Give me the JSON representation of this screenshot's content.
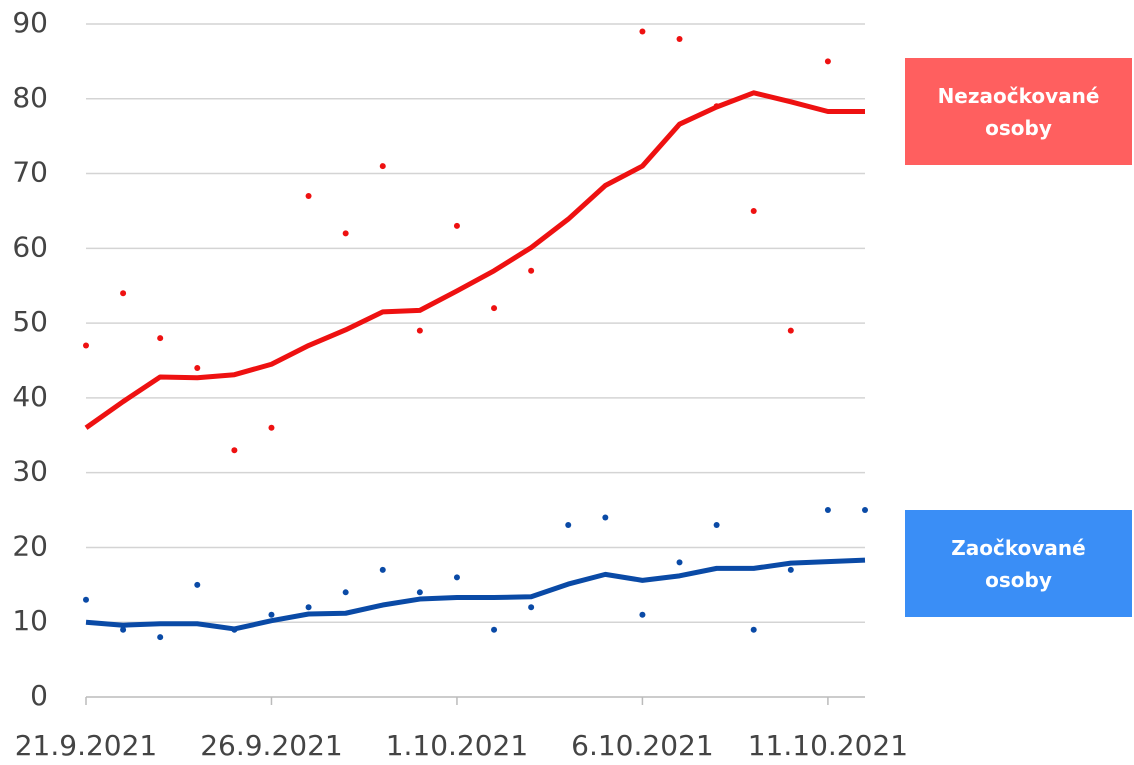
{
  "chart_data": {
    "type": "line",
    "categories": [
      "21.9.2021",
      null,
      null,
      null,
      null,
      "26.9.2021",
      null,
      null,
      null,
      null,
      "1.10.2021",
      null,
      null,
      null,
      null,
      "6.10.2021",
      null,
      null,
      null,
      null,
      "11.10.2021",
      null
    ],
    "ylim": [
      0,
      90
    ],
    "yticks": [
      0,
      10,
      20,
      30,
      40,
      50,
      60,
      70,
      80,
      90
    ],
    "grid": true,
    "series": [
      {
        "name": "Nezaočkované osoby",
        "color": "#ee1111",
        "legend_color": "#ff5f5f",
        "values": [
          36,
          39.5,
          42.8,
          42.7,
          43.1,
          44.5,
          47,
          49.1,
          51.5,
          51.7,
          54.3,
          57,
          60.1,
          63.9,
          68.4,
          71,
          76.6,
          78.9,
          80.8,
          79.6,
          78.3,
          78.3
        ],
        "daily": [
          47,
          54,
          48,
          44,
          33,
          36,
          67,
          62,
          71,
          49,
          63,
          52,
          57,
          null,
          null,
          89,
          88,
          79,
          65,
          49,
          85,
          null
        ]
      },
      {
        "name": "Zaočkované osoby",
        "color": "#0a4aa6",
        "legend_color": "#3a8ef6",
        "values": [
          10,
          9.6,
          9.8,
          9.8,
          9.1,
          10.2,
          11.1,
          11.2,
          12.3,
          13.1,
          13.3,
          13.3,
          13.4,
          15.1,
          16.4,
          15.6,
          16.2,
          17.2,
          17.2,
          17.9,
          18.1,
          18.3
        ],
        "daily": [
          13,
          9,
          8,
          15,
          9,
          11,
          12,
          14,
          17,
          14,
          16,
          9,
          12,
          23,
          24,
          11,
          18,
          23,
          9,
          17,
          25,
          25
        ]
      }
    ]
  }
}
